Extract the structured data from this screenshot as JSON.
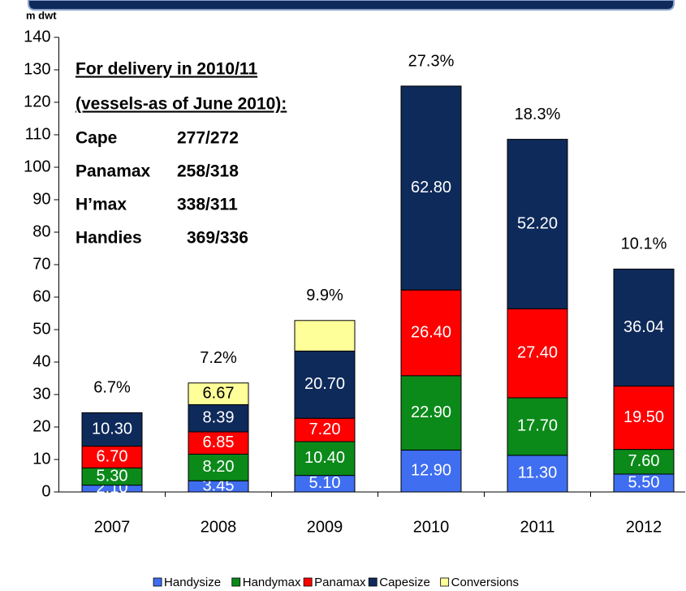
{
  "chart_data": {
    "type": "stacked-bar",
    "y_axis_label": "m dwt",
    "categories": [
      "2007",
      "2008",
      "2009",
      "2010",
      "2011",
      "2012"
    ],
    "series": [
      {
        "name": "Handysize",
        "color": "#3f6ef0",
        "values": [
          2.1,
          3.45,
          5.1,
          12.9,
          11.3,
          5.5
        ],
        "value_labels": [
          "2.10",
          "3.45",
          "5.10",
          "12.90",
          "11.30",
          "5.50"
        ]
      },
      {
        "name": "Handymax",
        "color": "#0b8a1a",
        "values": [
          5.3,
          8.2,
          10.4,
          22.9,
          17.7,
          7.6
        ],
        "value_labels": [
          "5.30",
          "8.20",
          "10.40",
          "22.90",
          "17.70",
          "7.60"
        ]
      },
      {
        "name": "Panamax",
        "color": "#ff0000",
        "values": [
          6.7,
          6.85,
          7.2,
          26.4,
          27.4,
          19.5
        ],
        "value_labels": [
          "6.70",
          "6.85",
          "7.20",
          "26.40",
          "27.40",
          "19.50"
        ]
      },
      {
        "name": "Capesize",
        "color": "#0e2a5a",
        "values": [
          10.3,
          8.39,
          20.7,
          62.8,
          52.2,
          36.04
        ],
        "value_labels": [
          "10.30",
          "8.39",
          "20.70",
          "62.80",
          "52.20",
          "36.04"
        ]
      },
      {
        "name": "Conversions",
        "color": "#ffff99",
        "values": [
          null,
          6.67,
          9.4,
          null,
          null,
          null
        ],
        "value_labels": [
          null,
          "6.67",
          null,
          null,
          null,
          null
        ]
      }
    ],
    "annotations": [
      "6.7%",
      "7.2%",
      "9.9%",
      "27.3%",
      "18.3%",
      "10.1%"
    ],
    "ylim": [
      0,
      140
    ],
    "yticks": [
      0,
      10,
      20,
      30,
      40,
      50,
      60,
      70,
      80,
      90,
      100,
      110,
      120,
      130,
      140
    ],
    "grid": false,
    "legend": "bottom",
    "textbox": {
      "heading": [
        "For delivery in 2010/11",
        "(vessels-as of June 2010):"
      ],
      "rows": [
        [
          "Cape",
          "277/272"
        ],
        [
          "Panamax",
          "258/318"
        ],
        [
          "H’max",
          "338/311"
        ],
        [
          "Handies",
          "369/336"
        ]
      ]
    }
  }
}
